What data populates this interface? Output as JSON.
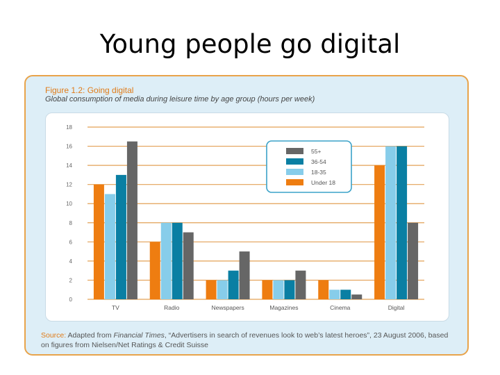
{
  "slide": {
    "title": "Young people go digital"
  },
  "figure": {
    "title": "Figure 1.2: Going digital",
    "subtitle": "Global consumption of media during leisure time by age group (hours per week)"
  },
  "source": {
    "label": "Source:",
    "text_before": " Adapted from ",
    "publication": "Financial Times",
    "text_after": ", “Advertisers in search of revenues look to web’s latest heroes”, 23 August 2006, based on figures from Nielsen/Net Ratings & Credit Suisse"
  },
  "chart_data": {
    "type": "bar",
    "categories": [
      "TV",
      "Radio",
      "Newspapers",
      "Magazines",
      "Cinema",
      "Digital"
    ],
    "series": [
      {
        "name": "Under 18",
        "color": "#ee7d11",
        "values": [
          12,
          6,
          2,
          2,
          2,
          14
        ]
      },
      {
        "name": "18-35",
        "color": "#87cdea",
        "values": [
          11,
          8,
          2,
          2,
          1,
          16
        ]
      },
      {
        "name": "36-54",
        "color": "#0a7fa3",
        "values": [
          13,
          8,
          3,
          2,
          1,
          16
        ]
      },
      {
        "name": "55+",
        "color": "#666666",
        "values": [
          16.5,
          7,
          5,
          3,
          0.5,
          8
        ]
      }
    ],
    "legend_order": [
      "55+",
      "36-54",
      "18-35",
      "Under 18"
    ],
    "legend_position": "top-right",
    "ylim": [
      0,
      18
    ],
    "yticks": [
      "0",
      "2",
      "4",
      "6",
      "8",
      "10",
      "12",
      "14",
      "16",
      "18"
    ],
    "grid": true,
    "grid_color": "#e3a055",
    "xlabel": "",
    "ylabel": ""
  }
}
